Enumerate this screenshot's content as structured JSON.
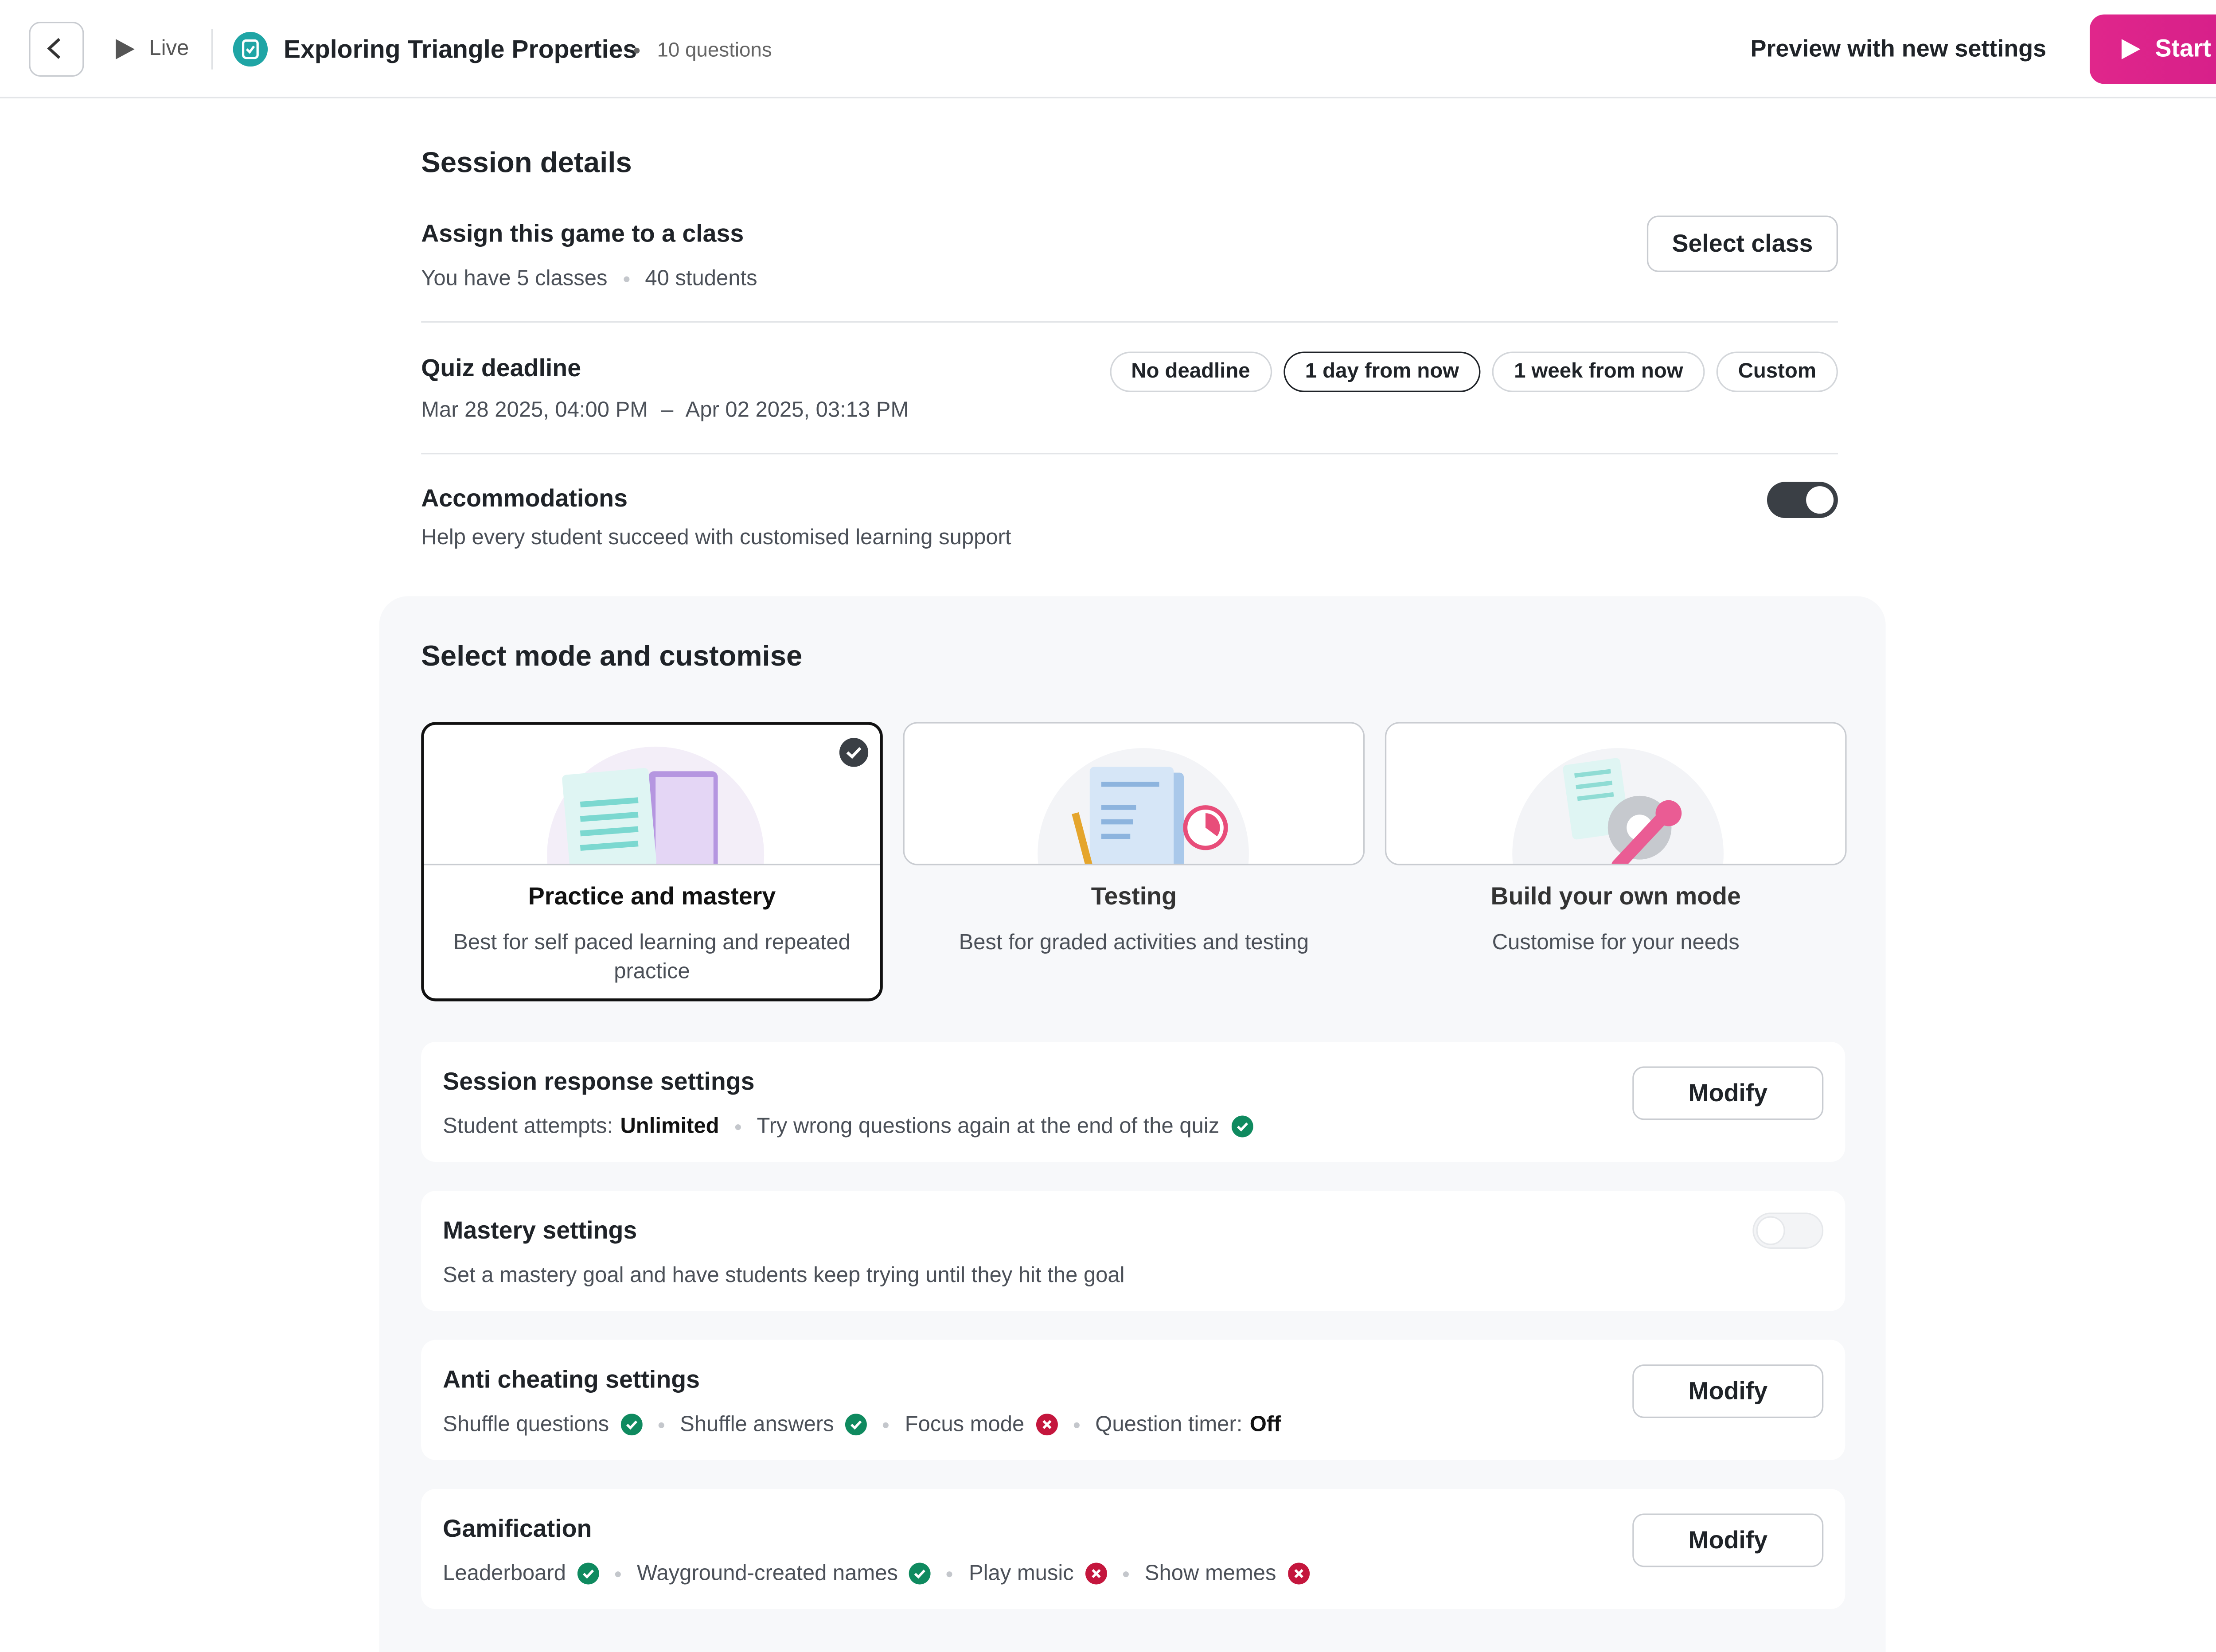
{
  "header": {
    "live": "Live",
    "title": "Exploring Triangle Properties",
    "question_count": "10 questions",
    "preview": "Preview with new settings",
    "start": "Start"
  },
  "session_details": {
    "heading": "Session details",
    "assign": {
      "title": "Assign this game to a class",
      "classes": "You have 5 classes",
      "students": "40 students",
      "button": "Select class"
    },
    "deadline": {
      "title": "Quiz deadline",
      "start": "Mar 28 2025, 04:00 PM",
      "dash": "–",
      "end": "Apr 02 2025, 03:13 PM",
      "options": [
        "No deadline",
        "1 day from now",
        "1 week from now",
        "Custom"
      ],
      "selected": 1
    },
    "accommodations": {
      "title": "Accommodations",
      "description": "Help every student succeed with customised learning support",
      "enabled": true
    }
  },
  "mode": {
    "heading": "Select mode and customise",
    "selected": 0,
    "modes": [
      {
        "title": "Practice and mastery",
        "description": "Best for self paced learning and repeated practice"
      },
      {
        "title": "Testing",
        "description": "Best for graded activities and testing"
      },
      {
        "title": "Build your own mode",
        "description": "Customise for your needs"
      }
    ]
  },
  "settings": [
    {
      "title": "Session response settings",
      "button": "Modify",
      "items": [
        {
          "label": "Student attempts:",
          "value": "Unlimited"
        },
        {
          "label": "Try wrong questions again at the end of the quiz",
          "status": "on"
        }
      ]
    },
    {
      "title": "Mastery settings",
      "description": "Set a mastery goal and have students keep trying until they hit the goal",
      "enabled": false
    },
    {
      "title": "Anti cheating settings",
      "button": "Modify",
      "items": [
        {
          "label": "Shuffle questions",
          "status": "on"
        },
        {
          "label": "Shuffle answers",
          "status": "on"
        },
        {
          "label": "Focus mode",
          "status": "off"
        },
        {
          "label": "Question timer:",
          "value": "Off"
        }
      ]
    },
    {
      "title": "Gamification",
      "button": "Modify",
      "items": [
        {
          "label": "Leaderboard",
          "status": "on"
        },
        {
          "label": "Wayground-created names",
          "status": "on"
        },
        {
          "label": "Play music",
          "status": "off"
        },
        {
          "label": "Show memes",
          "status": "off"
        }
      ]
    }
  ]
}
